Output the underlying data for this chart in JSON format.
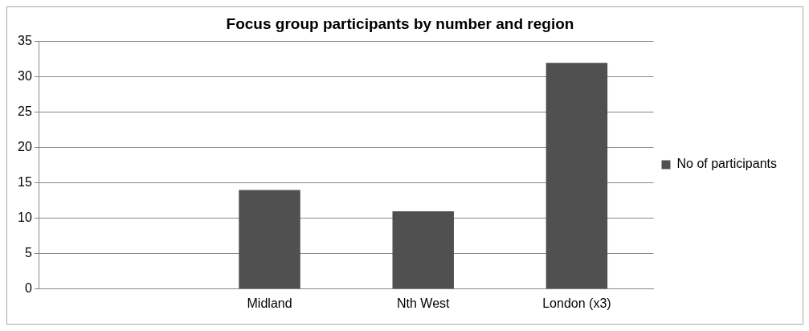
{
  "chart_data": {
    "type": "bar",
    "title": "Focus group participants by number and region",
    "categories": [
      null,
      "Midland",
      "Nth West",
      "London (x3)"
    ],
    "series": [
      {
        "name": "No of participants",
        "color": "#505050",
        "values": [
          null,
          14,
          11,
          32
        ]
      }
    ],
    "ylim": [
      0,
      35
    ],
    "yticks": [
      0,
      5,
      10,
      15,
      20,
      25,
      30,
      35
    ],
    "grid": "y",
    "legend": "right"
  }
}
